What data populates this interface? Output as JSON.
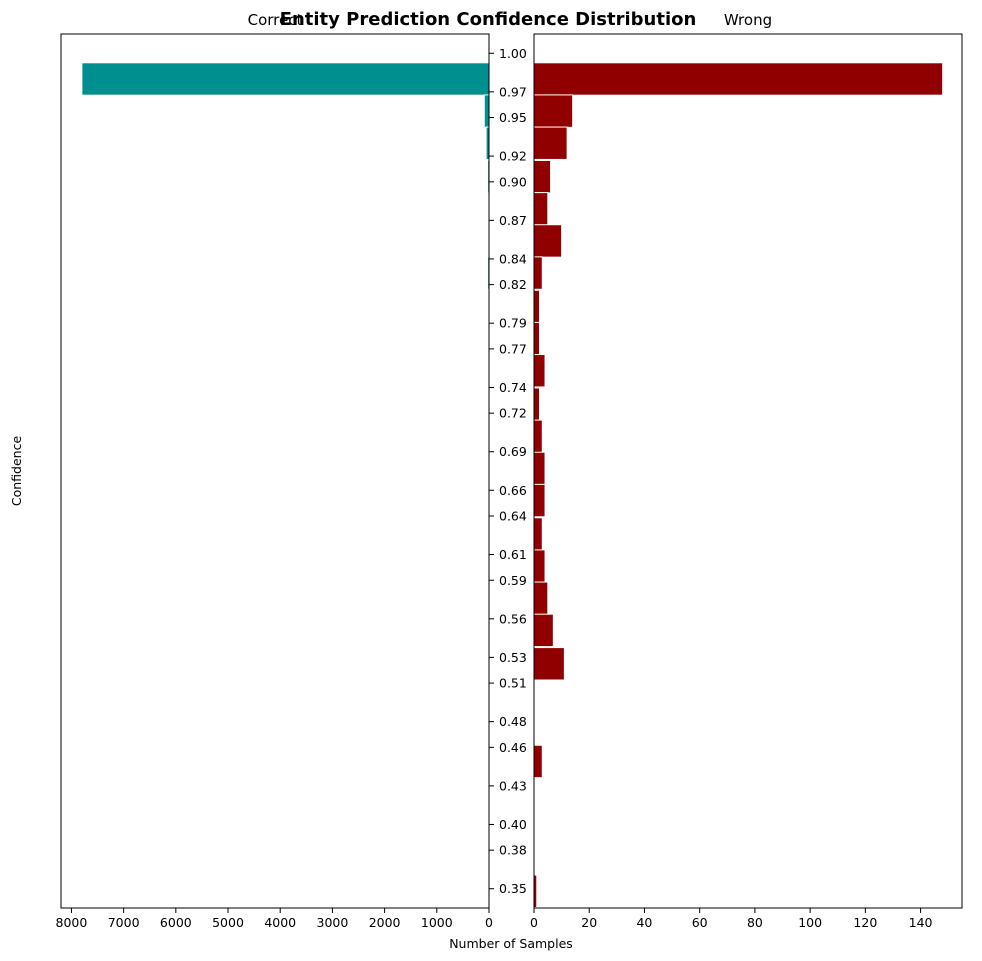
{
  "chart_data": {
    "type": "bar",
    "orientation": "horizontal",
    "title": "Entity Prediction Confidence Distribution",
    "xlabel": "Number of Samples",
    "ylabel": "Confidence",
    "ylim": [
      0.335,
      1.015
    ],
    "yticks": [
      {
        "value": 1.0,
        "label": "1.00"
      },
      {
        "value": 0.97,
        "label": "0.97"
      },
      {
        "value": 0.95,
        "label": "0.95"
      },
      {
        "value": 0.92,
        "label": "0.92"
      },
      {
        "value": 0.9,
        "label": "0.90"
      },
      {
        "value": 0.87,
        "label": "0.87"
      },
      {
        "value": 0.84,
        "label": "0.84"
      },
      {
        "value": 0.82,
        "label": "0.82"
      },
      {
        "value": 0.79,
        "label": "0.79"
      },
      {
        "value": 0.77,
        "label": "0.77"
      },
      {
        "value": 0.74,
        "label": "0.74"
      },
      {
        "value": 0.72,
        "label": "0.72"
      },
      {
        "value": 0.69,
        "label": "0.69"
      },
      {
        "value": 0.66,
        "label": "0.66"
      },
      {
        "value": 0.64,
        "label": "0.64"
      },
      {
        "value": 0.61,
        "label": "0.61"
      },
      {
        "value": 0.59,
        "label": "0.59"
      },
      {
        "value": 0.56,
        "label": "0.56"
      },
      {
        "value": 0.53,
        "label": "0.53"
      },
      {
        "value": 0.51,
        "label": "0.51"
      },
      {
        "value": 0.48,
        "label": "0.48"
      },
      {
        "value": 0.46,
        "label": "0.46"
      },
      {
        "value": 0.43,
        "label": "0.43"
      },
      {
        "value": 0.4,
        "label": "0.40"
      },
      {
        "value": 0.38,
        "label": "0.38"
      },
      {
        "value": 0.35,
        "label": "0.35"
      }
    ],
    "bins": [
      0.98,
      0.955,
      0.93,
      0.904,
      0.879,
      0.854,
      0.829,
      0.803,
      0.778,
      0.753,
      0.727,
      0.702,
      0.677,
      0.652,
      0.626,
      0.601,
      0.576,
      0.551,
      0.525,
      0.5,
      0.475,
      0.449,
      0.424,
      0.399,
      0.374,
      0.348
    ],
    "bin_height": 0.0252,
    "panels": [
      {
        "name": "Correct",
        "color": "#008f8f",
        "direction": "left",
        "xlim": [
          0,
          8200
        ],
        "xticks": [
          0,
          1000,
          2000,
          3000,
          4000,
          5000,
          6000,
          7000,
          8000
        ],
        "values": [
          7800,
          90,
          55,
          25,
          0,
          0,
          25,
          0,
          0,
          0,
          0,
          0,
          0,
          0,
          0,
          0,
          0,
          0,
          0,
          0,
          0,
          0,
          0,
          0,
          0,
          0
        ]
      },
      {
        "name": "Wrong",
        "color": "#910000",
        "direction": "right",
        "xlim": [
          0,
          155
        ],
        "xticks": [
          0,
          20,
          40,
          60,
          80,
          100,
          120,
          140
        ],
        "values": [
          148,
          14,
          12,
          6,
          5,
          10,
          3,
          2,
          2,
          4,
          2,
          3,
          4,
          4,
          3,
          4,
          5,
          7,
          11,
          0,
          0,
          3,
          0,
          0,
          0,
          1
        ]
      }
    ]
  }
}
